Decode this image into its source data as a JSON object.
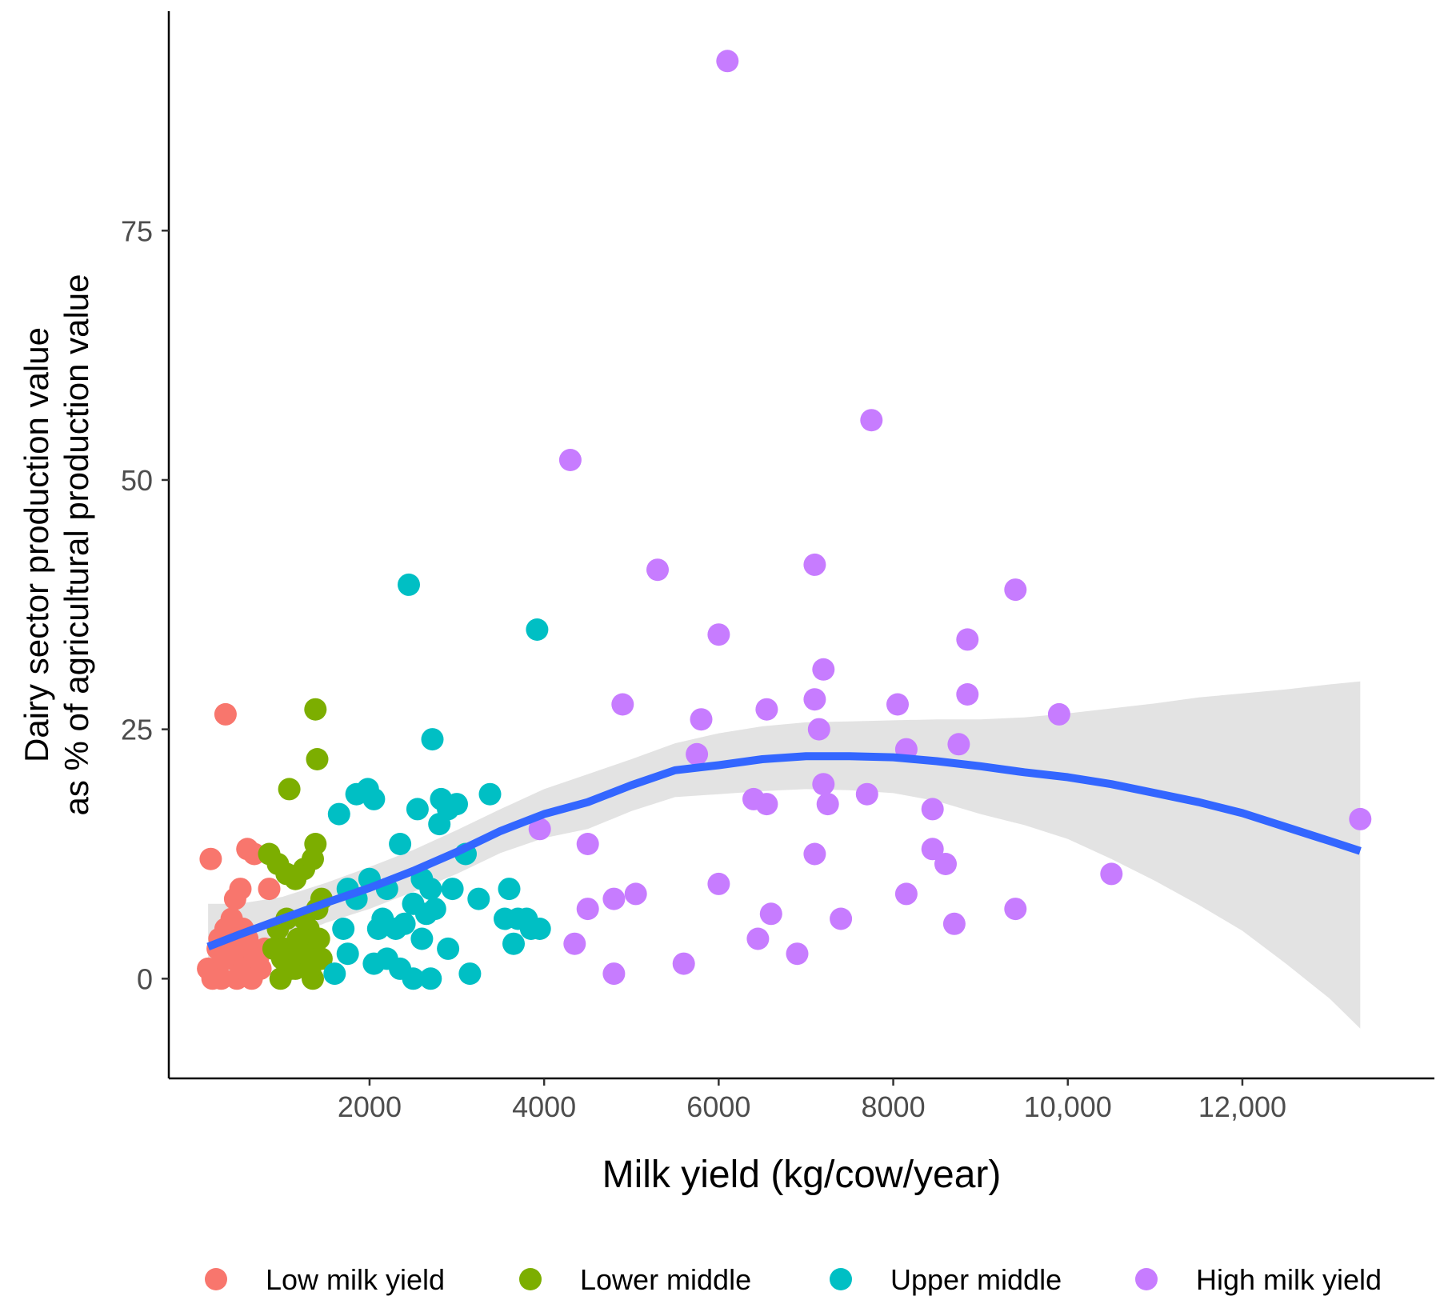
{
  "chart_data": {
    "type": "scatter",
    "title": "",
    "xlabel": "Milk yield (kg/cow/year)",
    "ylabel_lines": [
      "Dairy sector production value",
      "as % of agricultural production value"
    ],
    "xlim": [
      -300,
      14200
    ],
    "ylim": [
      -10,
      97
    ],
    "x_ticks": [
      2000,
      4000,
      6000,
      8000,
      10000,
      12000
    ],
    "x_tick_labels": [
      "2000",
      "4000",
      "6000",
      "8000",
      "10,000",
      "12,000"
    ],
    "y_ticks": [
      0,
      25,
      50,
      75
    ],
    "y_tick_labels": [
      "0",
      "25",
      "50",
      "75"
    ],
    "grid": false,
    "legend_position": "bottom",
    "series": [
      {
        "name": "Low milk yield",
        "color": "#F8766D",
        "points": [
          [
            180,
            12
          ],
          [
            350,
            26.5
          ],
          [
            420,
            6
          ],
          [
            460,
            8
          ],
          [
            520,
            9
          ],
          [
            600,
            13
          ],
          [
            680,
            12.5
          ],
          [
            850,
            9
          ],
          [
            280,
            4
          ],
          [
            350,
            5
          ],
          [
            420,
            3
          ],
          [
            500,
            2
          ],
          [
            550,
            5
          ],
          [
            620,
            3
          ],
          [
            680,
            2
          ],
          [
            750,
            1
          ],
          [
            800,
            3
          ],
          [
            150,
            1
          ],
          [
            200,
            0
          ],
          [
            250,
            1
          ],
          [
            300,
            0
          ],
          [
            380,
            2
          ],
          [
            480,
            0
          ],
          [
            560,
            1
          ],
          [
            650,
            0
          ],
          [
            720,
            2
          ],
          [
            260,
            3
          ],
          [
            330,
            2
          ],
          [
            470,
            4
          ],
          [
            600,
            4
          ]
        ]
      },
      {
        "name": "Lower middle",
        "color": "#7CAE00",
        "points": [
          [
            850,
            12.5
          ],
          [
            950,
            11.5
          ],
          [
            1050,
            10.5
          ],
          [
            1150,
            10
          ],
          [
            1250,
            11
          ],
          [
            1350,
            12
          ],
          [
            1380,
            13.5
          ],
          [
            1400,
            22
          ],
          [
            1380,
            27
          ],
          [
            1080,
            19
          ],
          [
            950,
            5
          ],
          [
            1050,
            6
          ],
          [
            1200,
            4
          ],
          [
            1300,
            5
          ],
          [
            1400,
            7
          ],
          [
            1450,
            8
          ],
          [
            900,
            3
          ],
          [
            1000,
            2
          ],
          [
            1100,
            1
          ],
          [
            1200,
            2
          ],
          [
            1300,
            3
          ],
          [
            1420,
            4
          ],
          [
            980,
            0
          ],
          [
            1150,
            1
          ],
          [
            1350,
            0
          ],
          [
            1450,
            2
          ],
          [
            1250,
            6
          ],
          [
            1020,
            3
          ],
          [
            1180,
            4
          ],
          [
            1320,
            1
          ]
        ]
      },
      {
        "name": "Upper middle",
        "color": "#00BFC4",
        "points": [
          [
            2450,
            39.5
          ],
          [
            2720,
            24
          ],
          [
            3920,
            35
          ],
          [
            3380,
            18.5
          ],
          [
            1650,
            16.5
          ],
          [
            1850,
            18.5
          ],
          [
            1980,
            19
          ],
          [
            2050,
            18
          ],
          [
            2550,
            17
          ],
          [
            2820,
            18
          ],
          [
            2900,
            17
          ],
          [
            3000,
            17.5
          ],
          [
            2800,
            15.5
          ],
          [
            2350,
            13.5
          ],
          [
            3100,
            12.5
          ],
          [
            2600,
            10
          ],
          [
            2000,
            10
          ],
          [
            1750,
            9
          ],
          [
            1850,
            8
          ],
          [
            2200,
            9
          ],
          [
            2700,
            9
          ],
          [
            2950,
            9
          ],
          [
            3250,
            8
          ],
          [
            3600,
            9
          ],
          [
            2500,
            7.5
          ],
          [
            2650,
            6.5
          ],
          [
            2750,
            7
          ],
          [
            2150,
            6
          ],
          [
            2300,
            5
          ],
          [
            2400,
            5.5
          ],
          [
            3550,
            6
          ],
          [
            3700,
            6
          ],
          [
            3850,
            5
          ],
          [
            3950,
            5
          ],
          [
            1700,
            5
          ],
          [
            1750,
            2.5
          ],
          [
            2050,
            1.5
          ],
          [
            2200,
            2
          ],
          [
            2350,
            1
          ],
          [
            2500,
            0
          ],
          [
            2700,
            0
          ],
          [
            2900,
            3
          ],
          [
            3150,
            0.5
          ],
          [
            1600,
            0.5
          ],
          [
            3650,
            3.5
          ],
          [
            3800,
            6
          ],
          [
            2100,
            5
          ],
          [
            2600,
            4
          ]
        ]
      },
      {
        "name": "High milk yield",
        "color": "#C77CFF",
        "points": [
          [
            6100,
            92
          ],
          [
            7750,
            56
          ],
          [
            4300,
            52
          ],
          [
            5300,
            41
          ],
          [
            7100,
            41.5
          ],
          [
            9400,
            39
          ],
          [
            3950,
            15
          ],
          [
            6000,
            34.5
          ],
          [
            8850,
            34
          ],
          [
            7200,
            31
          ],
          [
            4900,
            27.5
          ],
          [
            5800,
            26
          ],
          [
            6550,
            27
          ],
          [
            7100,
            28
          ],
          [
            8050,
            27.5
          ],
          [
            8850,
            28.5
          ],
          [
            9900,
            26.5
          ],
          [
            5750,
            22.5
          ],
          [
            7150,
            25
          ],
          [
            8150,
            23
          ],
          [
            8750,
            23.5
          ],
          [
            7200,
            19.5
          ],
          [
            7700,
            18.5
          ],
          [
            6400,
            18
          ],
          [
            6550,
            17.5
          ],
          [
            7250,
            17.5
          ],
          [
            8450,
            17
          ],
          [
            4500,
            13.5
          ],
          [
            7100,
            12.5
          ],
          [
            8450,
            13
          ],
          [
            8600,
            11.5
          ],
          [
            10500,
            10.5
          ],
          [
            13350,
            16
          ],
          [
            6000,
            9.5
          ],
          [
            4800,
            8
          ],
          [
            5050,
            8.5
          ],
          [
            8150,
            8.5
          ],
          [
            4500,
            7
          ],
          [
            6600,
            6.5
          ],
          [
            7400,
            6
          ],
          [
            8700,
            5.5
          ],
          [
            9400,
            7
          ],
          [
            4350,
            3.5
          ],
          [
            6450,
            4
          ],
          [
            6900,
            2.5
          ],
          [
            5600,
            1.5
          ],
          [
            4800,
            0.5
          ]
        ]
      }
    ],
    "smooth_line": {
      "color": "#3366FF",
      "x": [
        150,
        500,
        1000,
        1500,
        2000,
        2500,
        3000,
        3500,
        4000,
        4500,
        5000,
        5500,
        6000,
        6500,
        7000,
        7500,
        8000,
        8500,
        9000,
        9500,
        10000,
        10500,
        11000,
        11500,
        12000,
        12500,
        13000,
        13350
      ],
      "y": [
        3.2,
        4.4,
        6,
        7.6,
        9.1,
        10.8,
        12.7,
        14.8,
        16.5,
        17.7,
        19.4,
        20.9,
        21.4,
        22,
        22.3,
        22.3,
        22.2,
        21.8,
        21.3,
        20.7,
        20.2,
        19.5,
        18.6,
        17.7,
        16.6,
        15.2,
        13.8,
        12.8
      ],
      "ci_upper": [
        7.5,
        7.5,
        8.2,
        9.6,
        11.2,
        12.9,
        14.9,
        17,
        19,
        20.5,
        22,
        23.6,
        24.6,
        25.3,
        25.7,
        25.8,
        25.9,
        26,
        26,
        26.2,
        26.6,
        27.1,
        27.6,
        28.2,
        28.6,
        29,
        29.5,
        29.8
      ],
      "ci_lower": [
        -1,
        1.3,
        3.8,
        5.6,
        7,
        8.7,
        10.5,
        12.6,
        14.1,
        15,
        16.8,
        18.2,
        18.5,
        18.8,
        19,
        18.9,
        18.6,
        17.8,
        16.5,
        15.4,
        14,
        12,
        9.8,
        7.4,
        4.8,
        1.5,
        -2,
        -5
      ]
    }
  }
}
